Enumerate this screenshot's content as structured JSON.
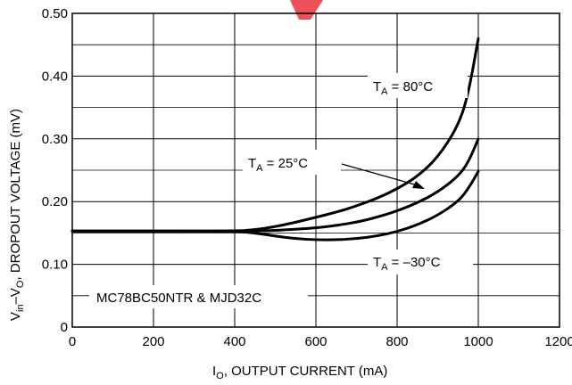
{
  "chart_data": {
    "type": "line",
    "xlabel_main": "I",
    "xlabel_sub": "O",
    "xlabel_rest": ", OUTPUT CURRENT (mA)",
    "ylabel_v1": "V",
    "ylabel_sub1": "in",
    "ylabel_mid": "–V",
    "ylabel_sub2": "O",
    "ylabel_rest": ", DROPOUT VOLTAGE (mV)",
    "xlim": [
      0,
      1200
    ],
    "ylim": [
      0,
      0.5
    ],
    "x_ticks": [
      0,
      200,
      400,
      600,
      800,
      1000,
      1200
    ],
    "x_tick_labels": [
      "0",
      "200",
      "400",
      "600",
      "800",
      "1000",
      "1200"
    ],
    "y_ticks": [
      0,
      0.1,
      0.2,
      0.3,
      0.4,
      0.5
    ],
    "y_tick_labels": [
      "0",
      "0.10",
      "0.20",
      "0.30",
      "0.40",
      "0.50"
    ],
    "grid": true,
    "annotation": "MC78BC50NTR & MJD32C",
    "series": [
      {
        "name_main": "T",
        "name_sub": "A",
        "name_rest": " = 80°C",
        "x": [
          0,
          400,
          450,
          500,
          550,
          600,
          650,
          700,
          750,
          800,
          850,
          900,
          950,
          975,
          1000
        ],
        "y": [
          0.153,
          0.153,
          0.155,
          0.16,
          0.167,
          0.175,
          0.183,
          0.193,
          0.205,
          0.22,
          0.24,
          0.27,
          0.32,
          0.37,
          0.46
        ]
      },
      {
        "name_main": "T",
        "name_sub": "A",
        "name_rest": " = 25°C",
        "x": [
          0,
          400,
          450,
          500,
          550,
          600,
          650,
          700,
          750,
          800,
          850,
          900,
          950,
          975,
          1000
        ],
        "y": [
          0.153,
          0.153,
          0.153,
          0.154,
          0.156,
          0.158,
          0.162,
          0.167,
          0.175,
          0.185,
          0.198,
          0.215,
          0.24,
          0.262,
          0.3
        ]
      },
      {
        "name_main": "T",
        "name_sub": "A",
        "name_rest": " = –30°C",
        "x": [
          0,
          400,
          450,
          500,
          550,
          600,
          650,
          700,
          750,
          800,
          850,
          900,
          950,
          975,
          1000
        ],
        "y": [
          0.153,
          0.153,
          0.15,
          0.145,
          0.141,
          0.139,
          0.139,
          0.141,
          0.145,
          0.152,
          0.163,
          0.178,
          0.2,
          0.22,
          0.248
        ]
      }
    ]
  },
  "watermark_color": "#e8323c"
}
